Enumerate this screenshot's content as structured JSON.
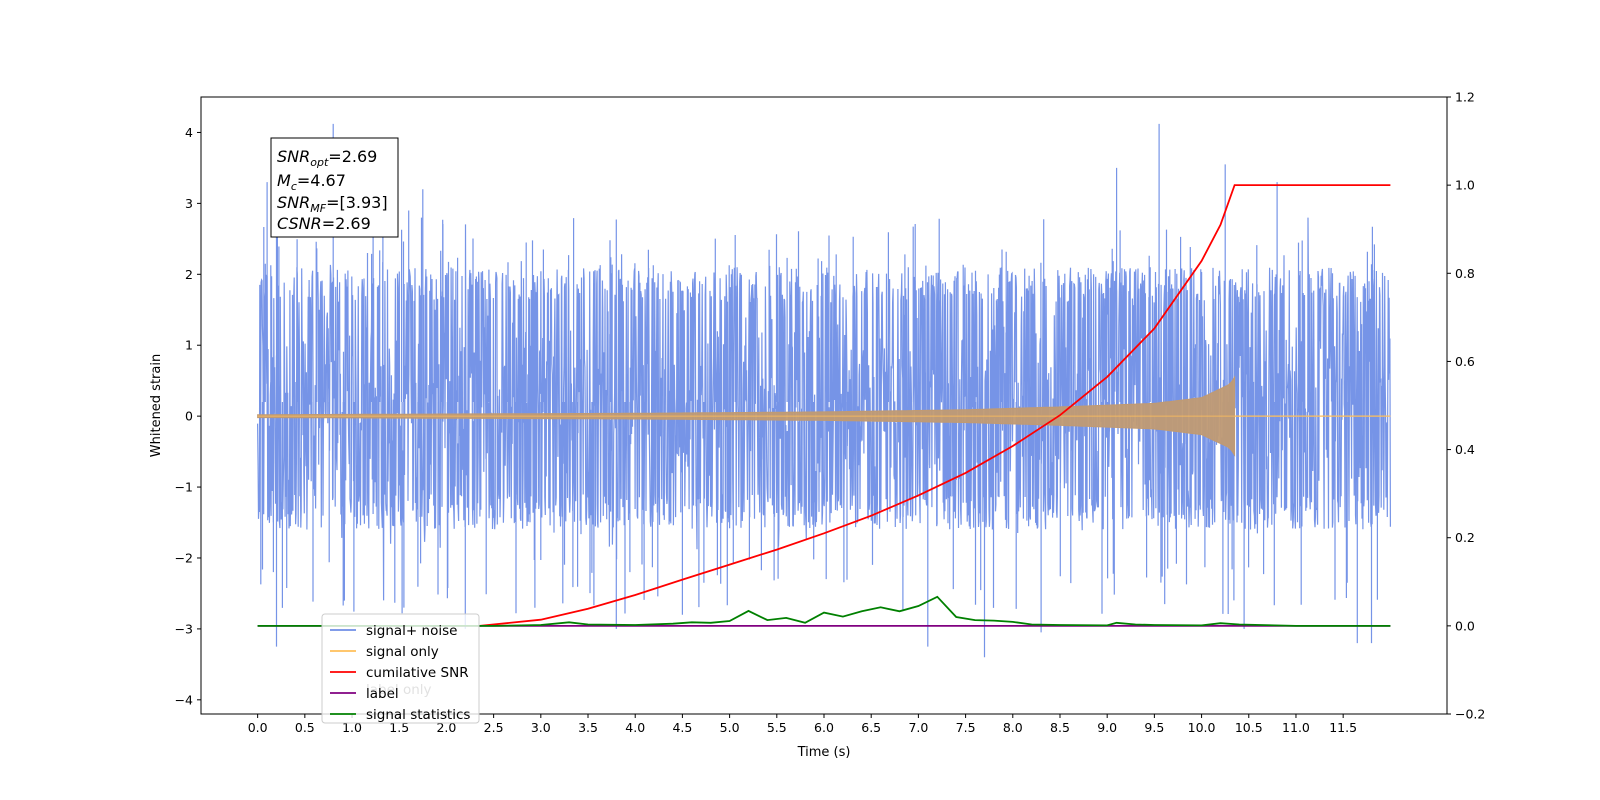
{
  "chart_data": {
    "type": "line",
    "xlabel": "Time (s)",
    "ylabel_left": "Whitened strain",
    "ylabel_right": "",
    "xlim": [
      -0.6,
      12.6
    ],
    "ylim_left": [
      -4.2,
      4.5
    ],
    "ylim_right": [
      -0.2,
      1.2
    ],
    "x_ticks": [
      "0.0",
      "0.5",
      "1.0",
      "1.5",
      "2.0",
      "2.5",
      "3.0",
      "3.5",
      "4.0",
      "4.5",
      "5.0",
      "5.5",
      "6.0",
      "6.5",
      "7.0",
      "7.5",
      "8.0",
      "8.5",
      "9.0",
      "9.5",
      "10.0",
      "10.5",
      "11.0",
      "11.5"
    ],
    "y_ticks_left": [
      "4",
      "3",
      "2",
      "1",
      "0",
      "−1",
      "−2",
      "−3",
      "−4"
    ],
    "y_ticks_right": [
      "1.2",
      "1.0",
      "0.8",
      "0.6",
      "0.4",
      "0.2",
      "0.0",
      "−0.2"
    ],
    "grid": false,
    "legend_position": "lower-left",
    "legend": [
      {
        "label": "signal+ noise",
        "color": "#6f8ee6"
      },
      {
        "label": "signal only",
        "color": "#ffbf5a"
      },
      {
        "label": "cumilative SNR",
        "color": "#ff0000"
      },
      {
        "label": "label",
        "color": "#800080"
      },
      {
        "label": "signal statistics",
        "color": "#008000"
      }
    ],
    "hidden_legend_text": "label only",
    "annotation": {
      "line1_sym": "SNR",
      "line1_sub": "opt",
      "line1_val": "=2.69",
      "line2_sym": "M",
      "line2_sub": "c",
      "line2_val": "=4.67",
      "line3_sym": "SNR",
      "line3_sub": "MF",
      "line3_val": "=[3.93]",
      "line4_sym": "CSNR",
      "line4_val": "=2.69"
    },
    "series": [
      {
        "name": "signal+ noise",
        "axis": "left",
        "color": "#6f8ee6",
        "x_range": [
          0.0,
          12.0
        ],
        "typical_envelope": [
          -1.6,
          2.1
        ],
        "max": 4.12,
        "min": -3.4,
        "peaks": [
          [
            0.1,
            3.3
          ],
          [
            0.2,
            2.9
          ],
          [
            0.8,
            4.12
          ],
          [
            1.6,
            2.9
          ],
          [
            1.75,
            3.2
          ],
          [
            9.1,
            3.5
          ],
          [
            9.55,
            4.12
          ],
          [
            10.25,
            3.55
          ],
          [
            10.8,
            3.3
          ]
        ],
        "troughs": [
          [
            0.2,
            -3.25
          ],
          [
            1.55,
            -2.7
          ],
          [
            2.2,
            -3.0
          ],
          [
            3.8,
            -3.0
          ],
          [
            4.5,
            -2.8
          ],
          [
            7.1,
            -3.25
          ],
          [
            7.7,
            -3.4
          ],
          [
            8.3,
            -3.05
          ],
          [
            10.45,
            -3.0
          ],
          [
            11.65,
            -3.2
          ],
          [
            11.8,
            -3.2
          ]
        ]
      },
      {
        "name": "signal only",
        "axis": "left",
        "color": "#ffbf5a",
        "x_range": [
          0.0,
          10.35
        ],
        "amplitude_points": [
          [
            0.0,
            0.02
          ],
          [
            4.0,
            0.04
          ],
          [
            6.0,
            0.06
          ],
          [
            7.5,
            0.09
          ],
          [
            8.5,
            0.13
          ],
          [
            9.5,
            0.18
          ],
          [
            10.0,
            0.26
          ],
          [
            10.3,
            0.45
          ],
          [
            10.35,
            0.55
          ]
        ],
        "after_merger_value": 0.0
      },
      {
        "name": "cumilative SNR",
        "axis": "right",
        "color": "#ff0000",
        "x": [
          2.35,
          3.0,
          3.5,
          4.0,
          4.5,
          5.0,
          5.5,
          6.0,
          6.5,
          7.0,
          7.5,
          8.0,
          8.5,
          9.0,
          9.5,
          10.0,
          10.2,
          10.35,
          11.0,
          12.0
        ],
        "values": [
          0.0,
          0.014,
          0.039,
          0.07,
          0.105,
          0.139,
          0.173,
          0.21,
          0.25,
          0.296,
          0.347,
          0.408,
          0.478,
          0.565,
          0.675,
          0.828,
          0.91,
          1.0,
          1.0,
          1.0
        ]
      },
      {
        "name": "label",
        "axis": "right",
        "color": "#800080",
        "x": [
          0.0,
          12.0
        ],
        "values": [
          0.0,
          0.0
        ]
      },
      {
        "name": "signal statistics",
        "axis": "right",
        "color": "#008000",
        "x": [
          0.0,
          2.5,
          3.0,
          3.3,
          3.5,
          4.0,
          4.4,
          4.6,
          4.8,
          5.0,
          5.2,
          5.4,
          5.6,
          5.8,
          6.0,
          6.2,
          6.4,
          6.6,
          6.8,
          7.0,
          7.2,
          7.4,
          7.6,
          7.8,
          8.0,
          8.2,
          8.5,
          9.0,
          9.1,
          9.3,
          9.5,
          10.0,
          10.2,
          10.4,
          11.0,
          12.0
        ],
        "values": [
          0.0,
          0.0,
          0.002,
          0.008,
          0.003,
          0.002,
          0.005,
          0.008,
          0.007,
          0.011,
          0.034,
          0.013,
          0.018,
          0.007,
          0.03,
          0.021,
          0.033,
          0.042,
          0.033,
          0.045,
          0.066,
          0.02,
          0.013,
          0.012,
          0.009,
          0.003,
          0.002,
          0.001,
          0.007,
          0.003,
          0.002,
          0.001,
          0.006,
          0.003,
          0.0,
          0.0
        ]
      }
    ]
  }
}
